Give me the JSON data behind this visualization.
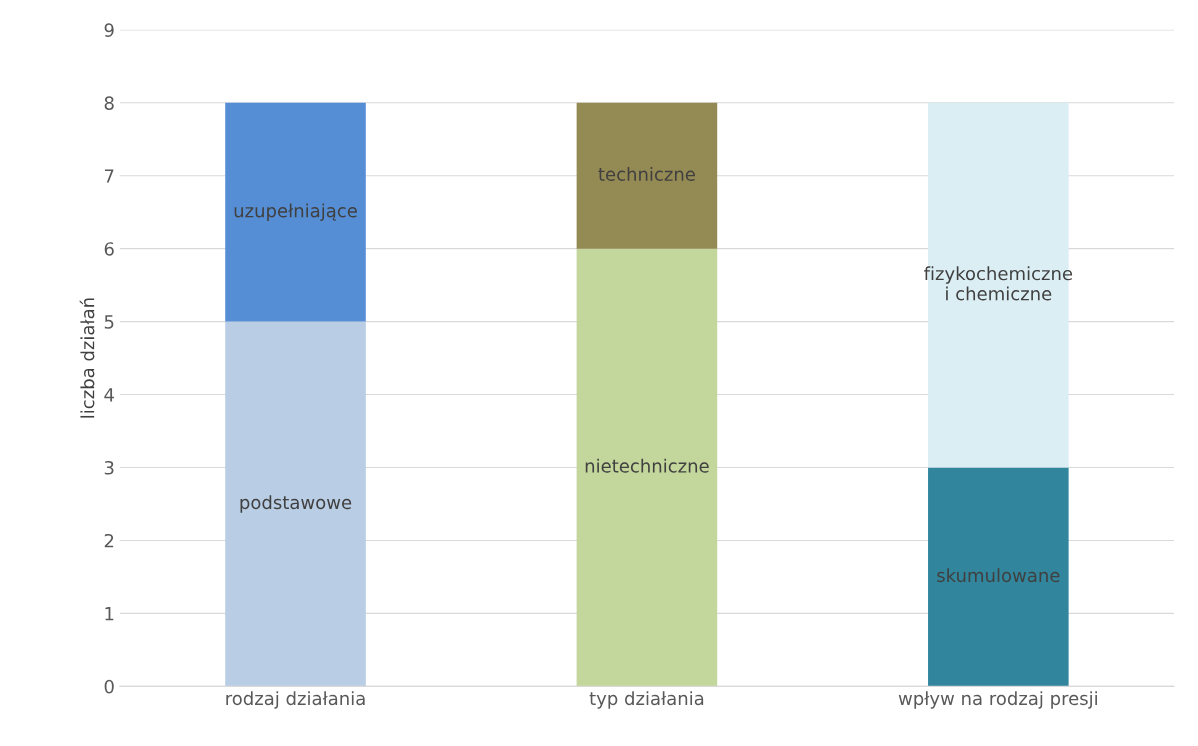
{
  "chart_data": {
    "type": "bar",
    "stacked": true,
    "ylabel": "liczba działań",
    "categories": [
      "rodzaj działania",
      "typ działania",
      "wpływ na rodzaj presji"
    ],
    "series": [
      {
        "name": "podstawowe",
        "color": "#b9cde5",
        "values": [
          5,
          null,
          null
        ]
      },
      {
        "name": "uzupełniające",
        "color": "#558ed5",
        "values": [
          3,
          null,
          null
        ]
      },
      {
        "name": "nietechniczne",
        "color": "#c3d69b",
        "values": [
          null,
          6,
          null
        ]
      },
      {
        "name": "techniczne",
        "color": "#948a54",
        "values": [
          null,
          2,
          null
        ]
      },
      {
        "name": "skumulowane",
        "color": "#31859c",
        "values": [
          null,
          null,
          3
        ]
      },
      {
        "name": "fizykochemiczne i chemiczne",
        "color": "#dbeef4",
        "values": [
          null,
          null,
          5
        ]
      }
    ],
    "ylim": [
      0,
      9
    ],
    "yticks": [
      0,
      1,
      2,
      3,
      4,
      5,
      6,
      7,
      8,
      9
    ],
    "grid": "y",
    "legend": false
  }
}
